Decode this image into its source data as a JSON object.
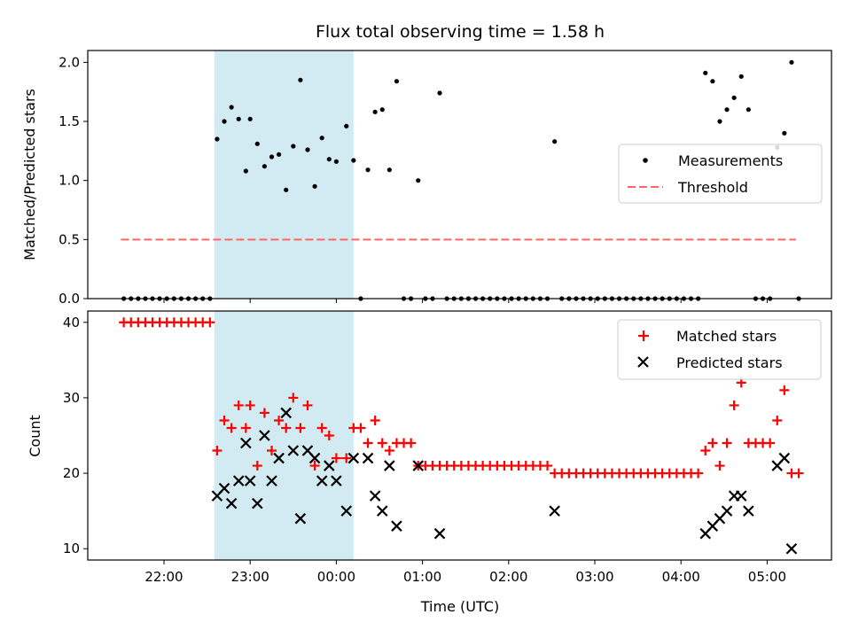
{
  "chart_data": {
    "title": "Flux total observing time = 1.58 h",
    "type": "scatter",
    "colors": {
      "shade": "#add8e6",
      "measurements": "#000000",
      "threshold": "#ff6666",
      "matched": "#ff0000",
      "predicted": "#000000"
    },
    "shaded_region": {
      "start": "22:35",
      "end": "00:12"
    },
    "top": {
      "ylabel": "Matched/Predicted stars",
      "ylim": [
        0,
        2.1
      ],
      "yticks": [
        "0.0",
        "0.5",
        "1.0",
        "1.5",
        "2.0"
      ],
      "threshold": {
        "value": 0.5,
        "from": "21:30",
        "to": "05:20"
      },
      "legend": {
        "position": "center-right",
        "entries": [
          "Measurements",
          "Threshold"
        ]
      },
      "measurements": [
        [
          "21:32",
          0
        ],
        [
          "21:37",
          0
        ],
        [
          "21:42",
          0
        ],
        [
          "21:47",
          0
        ],
        [
          "21:52",
          0
        ],
        [
          "21:57",
          0
        ],
        [
          "22:02",
          0
        ],
        [
          "22:07",
          0
        ],
        [
          "22:12",
          0
        ],
        [
          "22:17",
          0
        ],
        [
          "22:22",
          0
        ],
        [
          "22:27",
          0
        ],
        [
          "22:32",
          0
        ],
        [
          "22:37",
          1.35
        ],
        [
          "22:42",
          1.5
        ],
        [
          "22:47",
          1.62
        ],
        [
          "22:52",
          1.52
        ],
        [
          "22:57",
          1.08
        ],
        [
          "23:00",
          1.52
        ],
        [
          "23:05",
          1.31
        ],
        [
          "23:10",
          1.12
        ],
        [
          "23:15",
          1.2
        ],
        [
          "23:20",
          1.22
        ],
        [
          "23:25",
          0.92
        ],
        [
          "23:30",
          1.29
        ],
        [
          "23:35",
          1.85
        ],
        [
          "23:40",
          1.26
        ],
        [
          "23:45",
          0.95
        ],
        [
          "23:50",
          1.36
        ],
        [
          "23:55",
          1.18
        ],
        [
          "00:00",
          1.16
        ],
        [
          "00:07",
          1.46
        ],
        [
          "00:12",
          1.17
        ],
        [
          "00:17",
          0
        ],
        [
          "00:22",
          1.09
        ],
        [
          "00:27",
          1.58
        ],
        [
          "00:32",
          1.6
        ],
        [
          "00:37",
          1.09
        ],
        [
          "00:42",
          1.84
        ],
        [
          "00:47",
          0
        ],
        [
          "00:52",
          0
        ],
        [
          "00:57",
          1.0
        ],
        [
          "01:02",
          0
        ],
        [
          "01:07",
          0
        ],
        [
          "01:12",
          1.74
        ],
        [
          "01:17",
          0
        ],
        [
          "01:22",
          0
        ],
        [
          "01:27",
          0
        ],
        [
          "01:32",
          0
        ],
        [
          "01:37",
          0
        ],
        [
          "01:42",
          0
        ],
        [
          "01:47",
          0
        ],
        [
          "01:52",
          0
        ],
        [
          "01:57",
          0
        ],
        [
          "02:02",
          0
        ],
        [
          "02:07",
          0
        ],
        [
          "02:12",
          0
        ],
        [
          "02:17",
          0
        ],
        [
          "02:22",
          0
        ],
        [
          "02:27",
          0
        ],
        [
          "02:32",
          1.33
        ],
        [
          "02:37",
          0
        ],
        [
          "02:42",
          0
        ],
        [
          "02:47",
          0
        ],
        [
          "02:52",
          0
        ],
        [
          "02:57",
          0
        ],
        [
          "03:02",
          0
        ],
        [
          "03:07",
          0
        ],
        [
          "03:12",
          0
        ],
        [
          "03:17",
          0
        ],
        [
          "03:22",
          0
        ],
        [
          "03:27",
          0
        ],
        [
          "03:32",
          0
        ],
        [
          "03:37",
          0
        ],
        [
          "03:42",
          0
        ],
        [
          "03:47",
          0
        ],
        [
          "03:52",
          0
        ],
        [
          "03:57",
          0
        ],
        [
          "04:02",
          0
        ],
        [
          "04:07",
          0
        ],
        [
          "04:12",
          0
        ],
        [
          "04:17",
          1.91
        ],
        [
          "04:22",
          1.84
        ],
        [
          "04:27",
          1.5
        ],
        [
          "04:32",
          1.6
        ],
        [
          "04:37",
          1.7
        ],
        [
          "04:42",
          1.88
        ],
        [
          "04:47",
          1.6
        ],
        [
          "04:52",
          0
        ],
        [
          "04:57",
          0
        ],
        [
          "05:02",
          0
        ],
        [
          "05:07",
          1.28
        ],
        [
          "05:12",
          1.4
        ],
        [
          "05:17",
          2.0
        ],
        [
          "05:22",
          0
        ]
      ]
    },
    "bottom": {
      "ylabel": "Count",
      "xlabel": "Time (UTC)",
      "ylim": [
        8.5,
        41.5
      ],
      "yticks": [
        "10",
        "20",
        "30",
        "40"
      ],
      "xticks": [
        "22:00",
        "23:00",
        "00:00",
        "01:00",
        "02:00",
        "03:00",
        "04:00",
        "05:00"
      ],
      "legend": {
        "position": "top-right",
        "entries": [
          "Matched stars",
          "Predicted stars"
        ]
      },
      "matched": [
        [
          "21:32",
          40
        ],
        [
          "21:37",
          40
        ],
        [
          "21:42",
          40
        ],
        [
          "21:47",
          40
        ],
        [
          "21:52",
          40
        ],
        [
          "21:57",
          40
        ],
        [
          "22:02",
          40
        ],
        [
          "22:07",
          40
        ],
        [
          "22:12",
          40
        ],
        [
          "22:17",
          40
        ],
        [
          "22:22",
          40
        ],
        [
          "22:27",
          40
        ],
        [
          "22:32",
          40
        ],
        [
          "22:37",
          23
        ],
        [
          "22:42",
          27
        ],
        [
          "22:47",
          26
        ],
        [
          "22:52",
          29
        ],
        [
          "22:57",
          26
        ],
        [
          "23:00",
          29
        ],
        [
          "23:05",
          21
        ],
        [
          "23:10",
          28
        ],
        [
          "23:15",
          23
        ],
        [
          "23:20",
          27
        ],
        [
          "23:25",
          26
        ],
        [
          "23:30",
          30
        ],
        [
          "23:35",
          26
        ],
        [
          "23:40",
          29
        ],
        [
          "23:45",
          21
        ],
        [
          "23:50",
          26
        ],
        [
          "23:55",
          25
        ],
        [
          "00:00",
          22
        ],
        [
          "00:07",
          22
        ],
        [
          "00:12",
          26
        ],
        [
          "00:17",
          26
        ],
        [
          "00:22",
          24
        ],
        [
          "00:27",
          27
        ],
        [
          "00:32",
          24
        ],
        [
          "00:37",
          23
        ],
        [
          "00:42",
          24
        ],
        [
          "00:47",
          24
        ],
        [
          "00:52",
          24
        ],
        [
          "00:57",
          21
        ],
        [
          "01:02",
          21
        ],
        [
          "01:07",
          21
        ],
        [
          "01:12",
          21
        ],
        [
          "01:17",
          21
        ],
        [
          "01:22",
          21
        ],
        [
          "01:27",
          21
        ],
        [
          "01:32",
          21
        ],
        [
          "01:37",
          21
        ],
        [
          "01:42",
          21
        ],
        [
          "01:47",
          21
        ],
        [
          "01:52",
          21
        ],
        [
          "01:57",
          21
        ],
        [
          "02:02",
          21
        ],
        [
          "02:07",
          21
        ],
        [
          "02:12",
          21
        ],
        [
          "02:17",
          21
        ],
        [
          "02:22",
          21
        ],
        [
          "02:27",
          21
        ],
        [
          "02:32",
          20
        ],
        [
          "02:37",
          20
        ],
        [
          "02:42",
          20
        ],
        [
          "02:47",
          20
        ],
        [
          "02:52",
          20
        ],
        [
          "02:57",
          20
        ],
        [
          "03:02",
          20
        ],
        [
          "03:07",
          20
        ],
        [
          "03:12",
          20
        ],
        [
          "03:17",
          20
        ],
        [
          "03:22",
          20
        ],
        [
          "03:27",
          20
        ],
        [
          "03:32",
          20
        ],
        [
          "03:37",
          20
        ],
        [
          "03:42",
          20
        ],
        [
          "03:47",
          20
        ],
        [
          "03:52",
          20
        ],
        [
          "03:57",
          20
        ],
        [
          "04:02",
          20
        ],
        [
          "04:07",
          20
        ],
        [
          "04:12",
          20
        ],
        [
          "04:17",
          23
        ],
        [
          "04:22",
          24
        ],
        [
          "04:27",
          21
        ],
        [
          "04:32",
          24
        ],
        [
          "04:37",
          29
        ],
        [
          "04:42",
          32
        ],
        [
          "04:47",
          24
        ],
        [
          "04:52",
          24
        ],
        [
          "04:57",
          24
        ],
        [
          "05:02",
          24
        ],
        [
          "05:07",
          27
        ],
        [
          "05:12",
          31
        ],
        [
          "05:17",
          20
        ],
        [
          "05:22",
          20
        ]
      ],
      "predicted": [
        [
          "22:37",
          17
        ],
        [
          "22:42",
          18
        ],
        [
          "22:47",
          16
        ],
        [
          "22:52",
          19
        ],
        [
          "22:57",
          24
        ],
        [
          "23:00",
          19
        ],
        [
          "23:05",
          16
        ],
        [
          "23:10",
          25
        ],
        [
          "23:15",
          19
        ],
        [
          "23:20",
          22
        ],
        [
          "23:25",
          28
        ],
        [
          "23:30",
          23
        ],
        [
          "23:35",
          14
        ],
        [
          "23:40",
          23
        ],
        [
          "23:45",
          22
        ],
        [
          "23:50",
          19
        ],
        [
          "23:55",
          21
        ],
        [
          "00:00",
          19
        ],
        [
          "00:07",
          15
        ],
        [
          "00:12",
          22
        ],
        [
          "00:22",
          22
        ],
        [
          "00:27",
          17
        ],
        [
          "00:32",
          15
        ],
        [
          "00:37",
          21
        ],
        [
          "00:42",
          13
        ],
        [
          "00:57",
          21
        ],
        [
          "01:12",
          12
        ],
        [
          "02:32",
          15
        ],
        [
          "04:17",
          12
        ],
        [
          "04:22",
          13
        ],
        [
          "04:27",
          14
        ],
        [
          "04:32",
          15
        ],
        [
          "04:37",
          17
        ],
        [
          "04:42",
          17
        ],
        [
          "04:47",
          15
        ],
        [
          "05:07",
          21
        ],
        [
          "05:12",
          22
        ],
        [
          "05:17",
          10
        ]
      ]
    }
  }
}
